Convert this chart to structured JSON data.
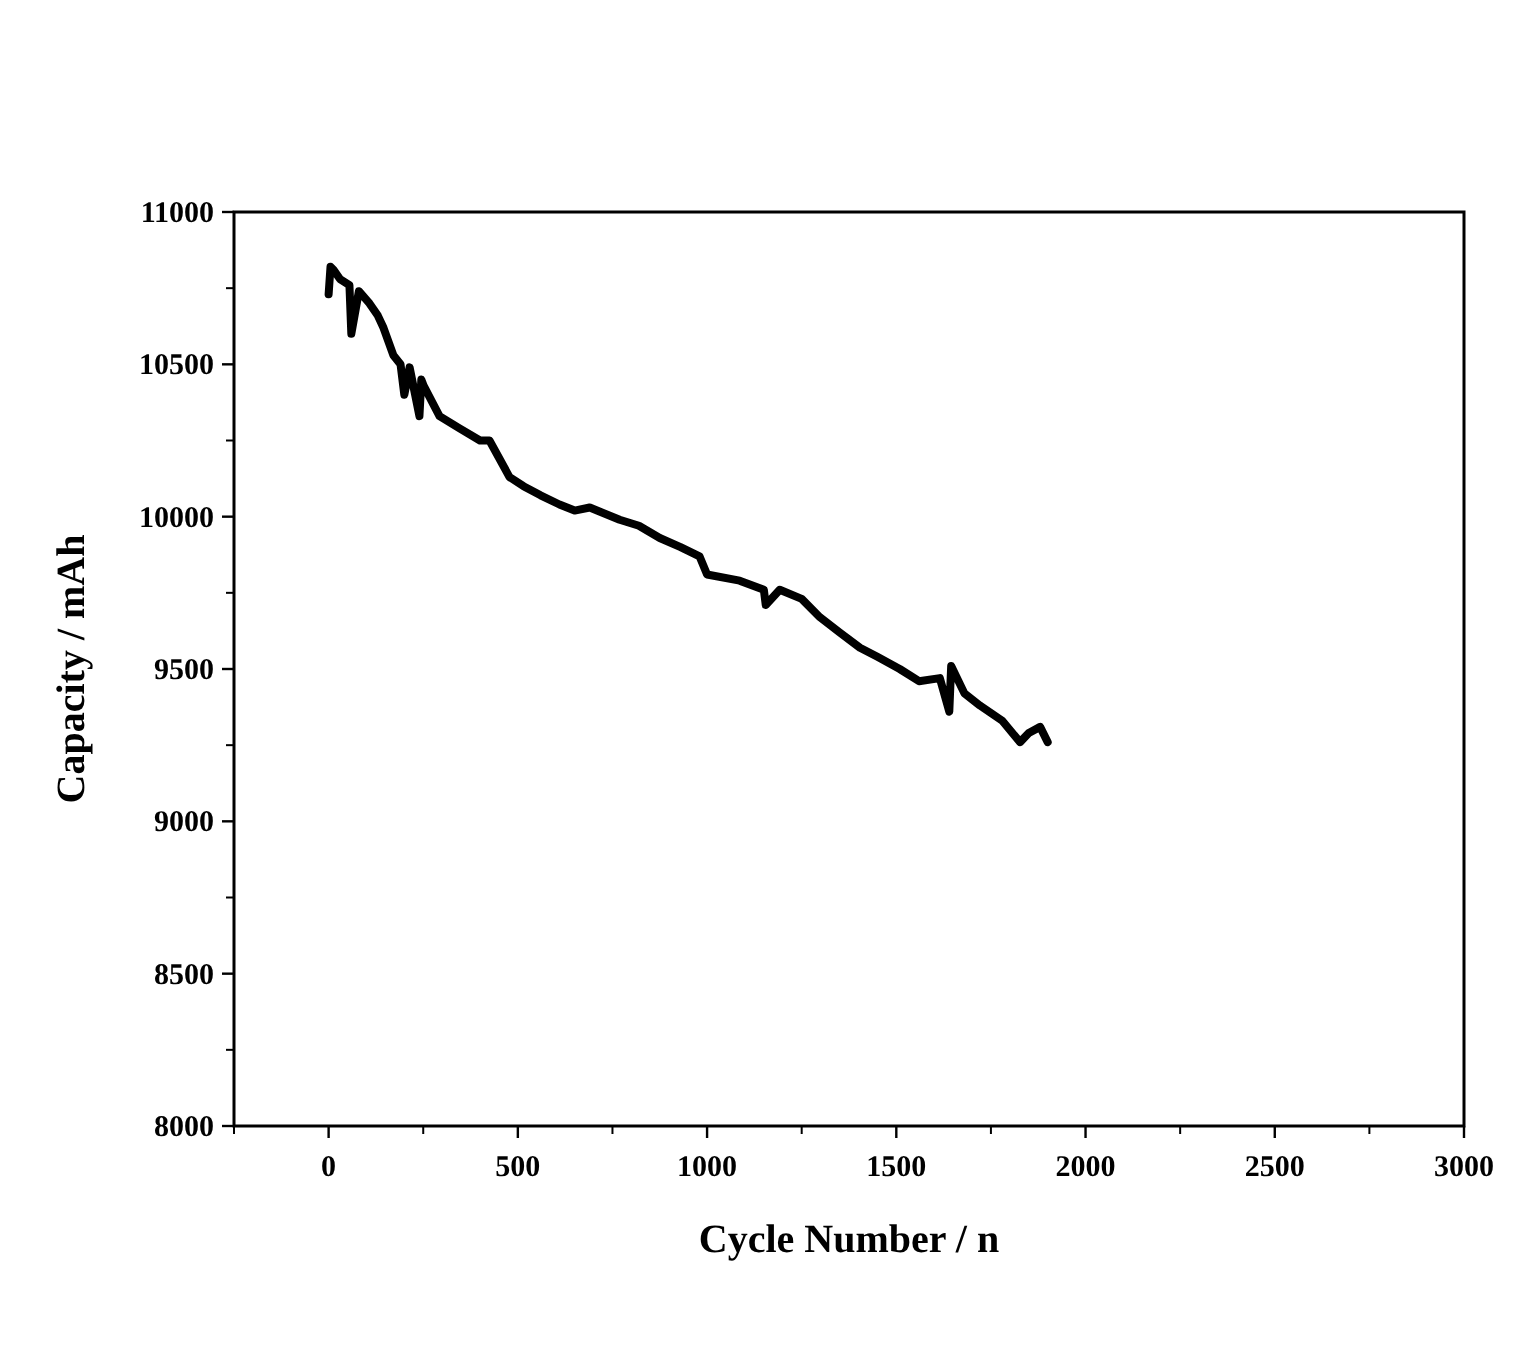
{
  "chart_data": {
    "type": "line",
    "xlabel": "Cycle Number / n",
    "ylabel": "Capacity / mAh",
    "series": [
      {
        "color": "#000000",
        "x": [
          0,
          5,
          13,
          30,
          55,
          60,
          80,
          108,
          130,
          145,
          171,
          190,
          200,
          214,
          240,
          245,
          251,
          293,
          346,
          400,
          425,
          478,
          515,
          560,
          610,
          650,
          690,
          769,
          820,
          875,
          930,
          980,
          1000,
          1086,
          1150,
          1155,
          1192,
          1250,
          1298,
          1350,
          1404,
          1450,
          1509,
          1560,
          1615,
          1640,
          1645,
          1680,
          1721,
          1780,
          1827,
          1850,
          1880,
          1900
        ],
        "values": [
          10730,
          10820,
          10810,
          10780,
          10760,
          10600,
          10740,
          10700,
          10660,
          10620,
          10530,
          10500,
          10400,
          10490,
          10330,
          10450,
          10430,
          10330,
          10290,
          10250,
          10250,
          10130,
          10100,
          10070,
          10040,
          10020,
          10030,
          9990,
          9970,
          9930,
          9900,
          9870,
          9810,
          9790,
          9760,
          9710,
          9760,
          9730,
          9670,
          9620,
          9570,
          9540,
          9500,
          9460,
          9470,
          9360,
          9510,
          9420,
          9380,
          9330,
          9260,
          9290,
          9310,
          9260
        ]
      }
    ],
    "xlim": [
      -250,
      3000
    ],
    "xticks": [
      0,
      500,
      1000,
      1500,
      2000,
      2500,
      3000
    ],
    "ylim": [
      8000,
      11000
    ],
    "yticks": [
      8000,
      8500,
      9000,
      9500,
      10000,
      10500,
      11000
    ],
    "grid": false,
    "marker": "none",
    "line_style": "solid"
  }
}
